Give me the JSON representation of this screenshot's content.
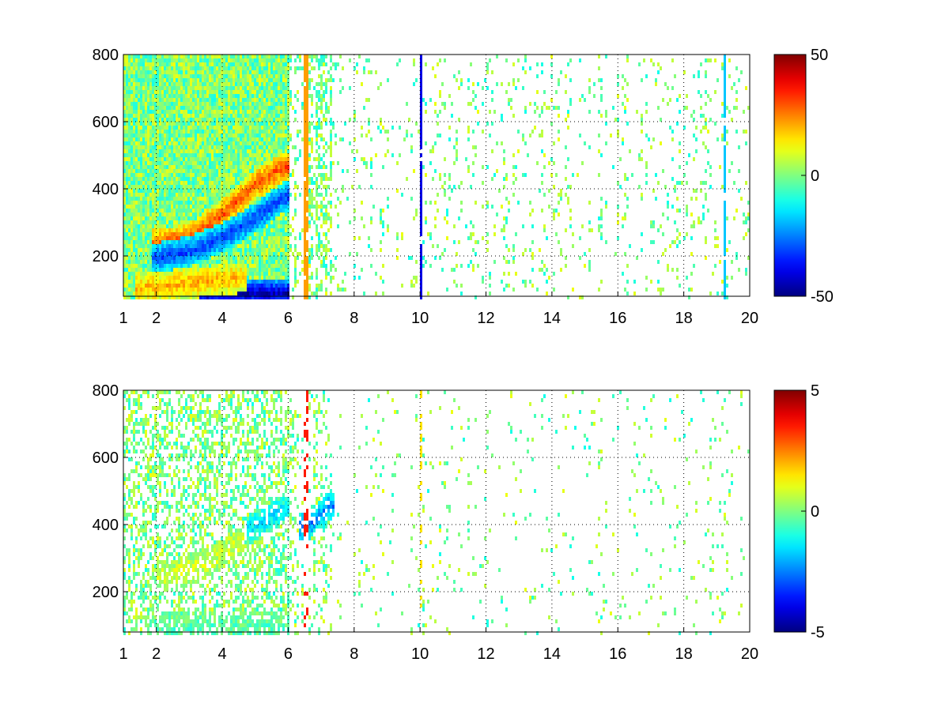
{
  "chart_data": [
    {
      "type": "heatmap",
      "title": "",
      "xlabel": "",
      "ylabel": "",
      "x_ticks": [
        1,
        2,
        4,
        6,
        8,
        10,
        12,
        14,
        16,
        18,
        20
      ],
      "y_ticks": [
        200,
        400,
        600,
        800
      ],
      "xlim": [
        1,
        20
      ],
      "ylim": [
        80,
        800
      ],
      "grid": true,
      "colormap": "jet",
      "colorbar": {
        "min": -50,
        "max": 50,
        "ticks": [
          -50,
          0,
          50
        ]
      },
      "features": [
        {
          "kind": "band",
          "value": 30,
          "points": [
            [
              2,
              240
            ],
            [
              3,
              260
            ],
            [
              4,
              330
            ],
            [
              5,
              420
            ],
            [
              5.8,
              470
            ]
          ]
        },
        {
          "kind": "band",
          "value": -32,
          "points": [
            [
              2,
              200
            ],
            [
              3,
              220
            ],
            [
              4,
              260
            ],
            [
              5,
              320
            ],
            [
              5.8,
              380
            ]
          ]
        },
        {
          "kind": "band",
          "value": -45,
          "points": [
            [
              2,
              90
            ],
            [
              3,
              95
            ],
            [
              4,
              95
            ],
            [
              5,
              95
            ],
            [
              5.8,
              95
            ]
          ]
        },
        {
          "kind": "band",
          "value": 20,
          "points": [
            [
              1.5,
              110
            ],
            [
              2.5,
              120
            ],
            [
              3.5,
              130
            ],
            [
              4.5,
              140
            ]
          ]
        },
        {
          "kind": "line",
          "x": 6.5,
          "value": 22
        },
        {
          "kind": "line",
          "x": 10,
          "value": -40
        },
        {
          "kind": "line",
          "x": 19.2,
          "value": -18
        }
      ]
    },
    {
      "type": "heatmap",
      "title": "",
      "xlabel": "",
      "ylabel": "",
      "x_ticks": [
        1,
        2,
        4,
        6,
        8,
        10,
        12,
        14,
        16,
        18,
        20
      ],
      "y_ticks": [
        200,
        400,
        600,
        800
      ],
      "xlim": [
        1,
        20
      ],
      "ylim": [
        80,
        800
      ],
      "grid": true,
      "colormap": "jet",
      "colorbar": {
        "min": -5,
        "max": 5,
        "ticks": [
          -5,
          0,
          5
        ]
      },
      "features": [
        {
          "kind": "band",
          "value": 0.8,
          "points": [
            [
              2.2,
              250
            ],
            [
              3,
              270
            ],
            [
              4,
              320
            ],
            [
              5,
              380
            ]
          ]
        },
        {
          "kind": "band",
          "value": -1.5,
          "points": [
            [
              4.8,
              390
            ],
            [
              5.3,
              420
            ],
            [
              5.8,
              450
            ]
          ]
        },
        {
          "kind": "band",
          "value": -0.4,
          "points": [
            [
              1.8,
              95
            ],
            [
              3,
              100
            ],
            [
              4,
              100
            ],
            [
              5.8,
              100
            ]
          ]
        },
        {
          "kind": "band",
          "value": -2.5,
          "points": [
            [
              6.5,
              400
            ],
            [
              6.9,
              430
            ],
            [
              7.2,
              460
            ]
          ]
        },
        {
          "kind": "line",
          "x": 6.5,
          "value": 3.5
        },
        {
          "kind": "line",
          "x": 10,
          "value": 1.5
        }
      ]
    }
  ]
}
